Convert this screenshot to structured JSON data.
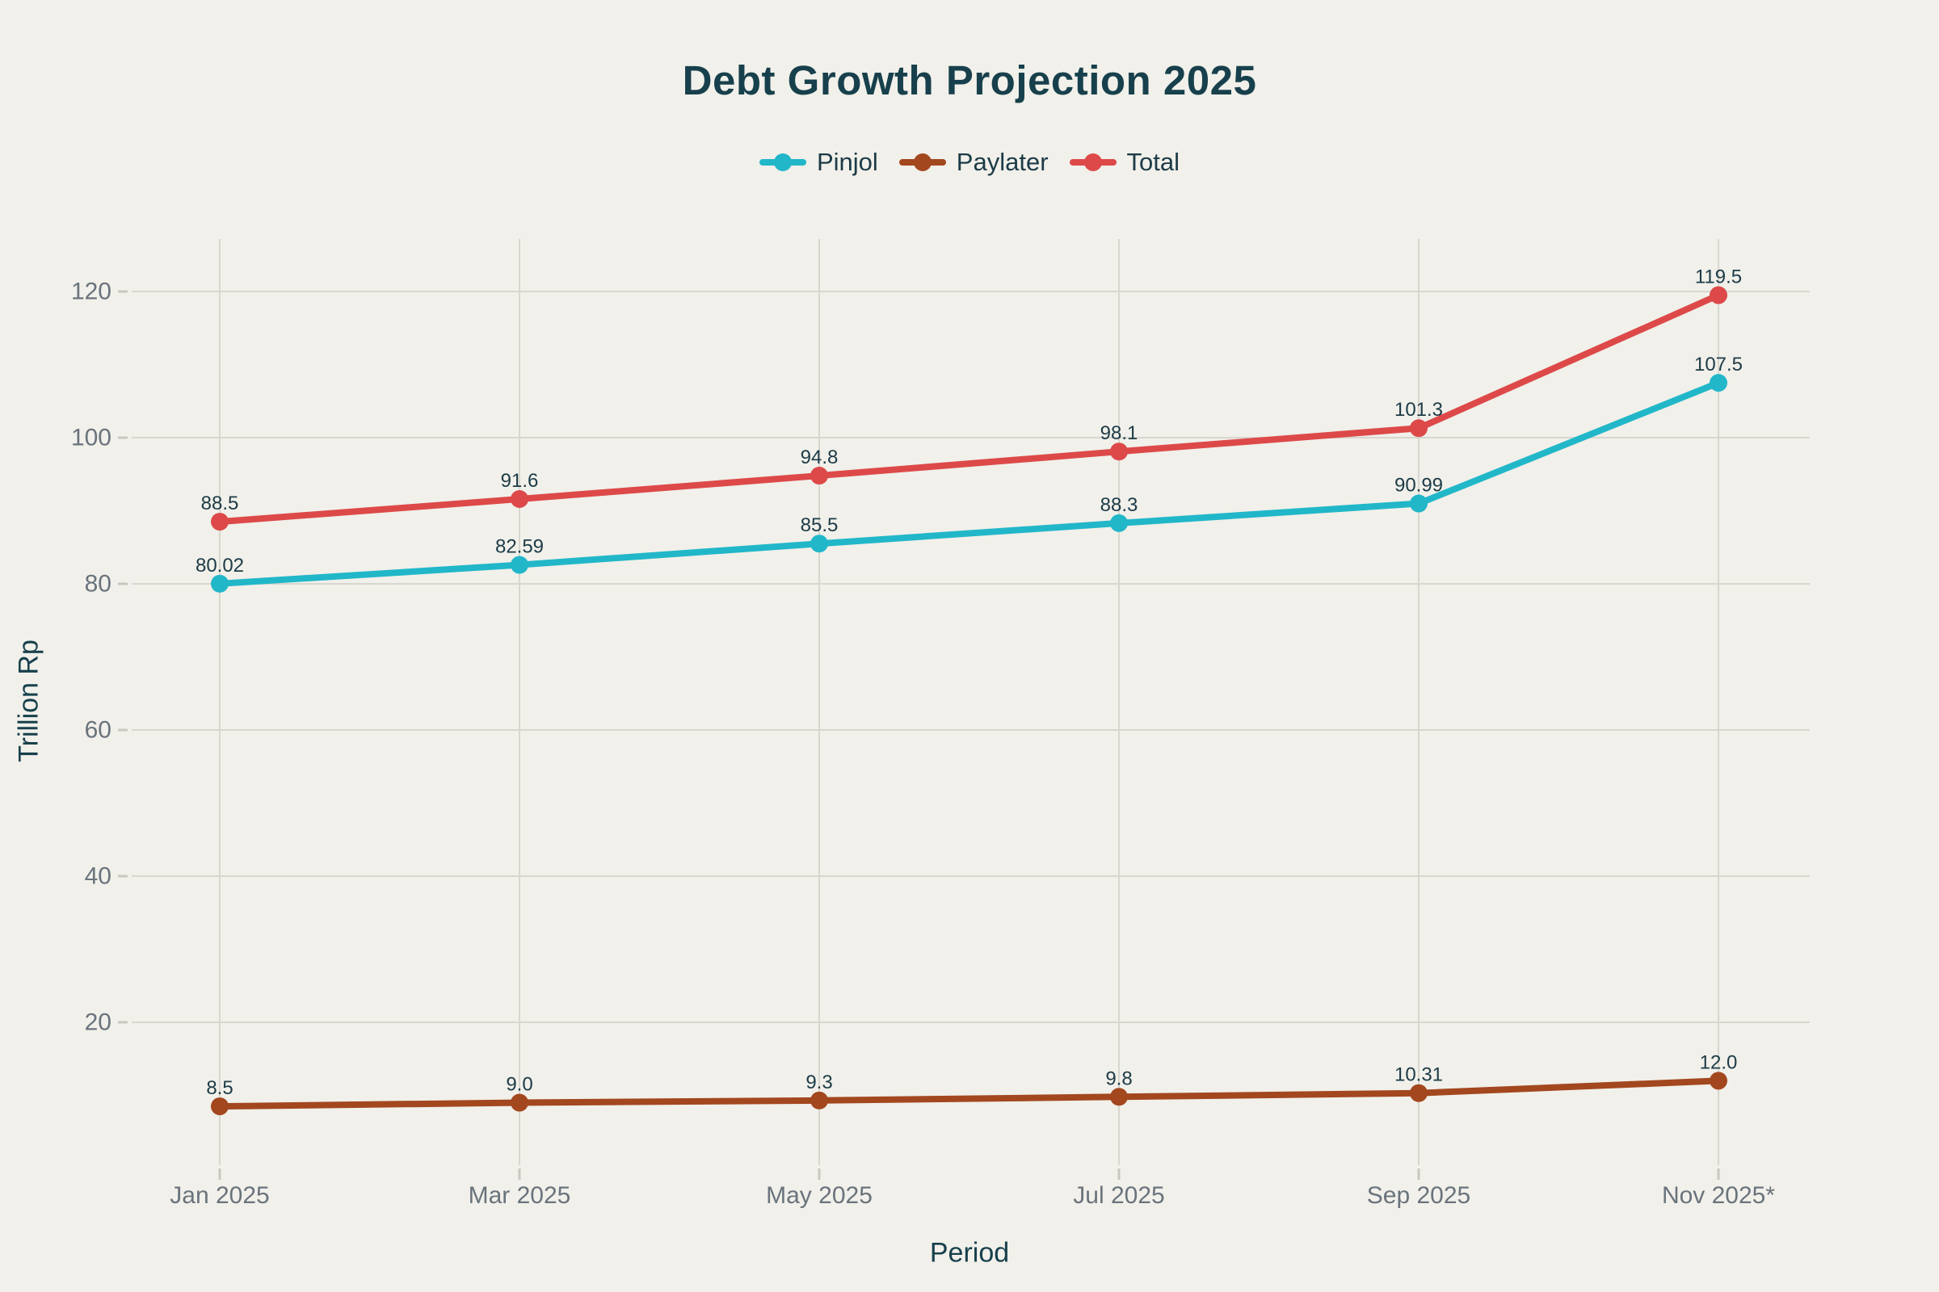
{
  "colors": {
    "background": "#F1F0EA",
    "title_text": "#17404C",
    "axis_title_text": "#17404C",
    "tick_text": "#6A737C",
    "data_label_text": "#1C3B47",
    "gridline": "#D8D7CF",
    "tick_mark": "#C9C8C0"
  },
  "chart_data": {
    "type": "line",
    "title": "Debt Growth Projection 2025",
    "xlabel": "Period",
    "ylabel": "Trillion Rp",
    "categories": [
      "Jan 2025",
      "Mar 2025",
      "May 2025",
      "Jul 2025",
      "Sep 2025",
      "Nov 2025*"
    ],
    "series": [
      {
        "name": "Pinjol",
        "color": "#21B7C9",
        "values": [
          80.02,
          82.59,
          85.5,
          88.3,
          90.99,
          107.5
        ],
        "point_labels": [
          "80.02",
          "82.59",
          "85.5",
          "88.3",
          "90.99",
          "107.5"
        ]
      },
      {
        "name": "Paylater",
        "color": "#A3471F",
        "values": [
          8.5,
          9.0,
          9.3,
          9.8,
          10.31,
          12.0
        ],
        "point_labels": [
          "8.5",
          "9.0",
          "9.3",
          "9.8",
          "10.31",
          "12.0"
        ]
      },
      {
        "name": "Total",
        "color": "#DD4949",
        "values": [
          88.5,
          91.6,
          94.8,
          98.1,
          101.3,
          119.5
        ],
        "point_labels": [
          "88.5",
          "91.6",
          "94.8",
          "98.1",
          "101.3",
          "119.5"
        ]
      }
    ],
    "yticks": [
      20,
      40,
      60,
      80,
      100,
      120
    ],
    "ylim": [
      0,
      127.5
    ],
    "grid": true,
    "legend_position": "top-center",
    "markers": "circle",
    "point_labels_shown": true
  }
}
